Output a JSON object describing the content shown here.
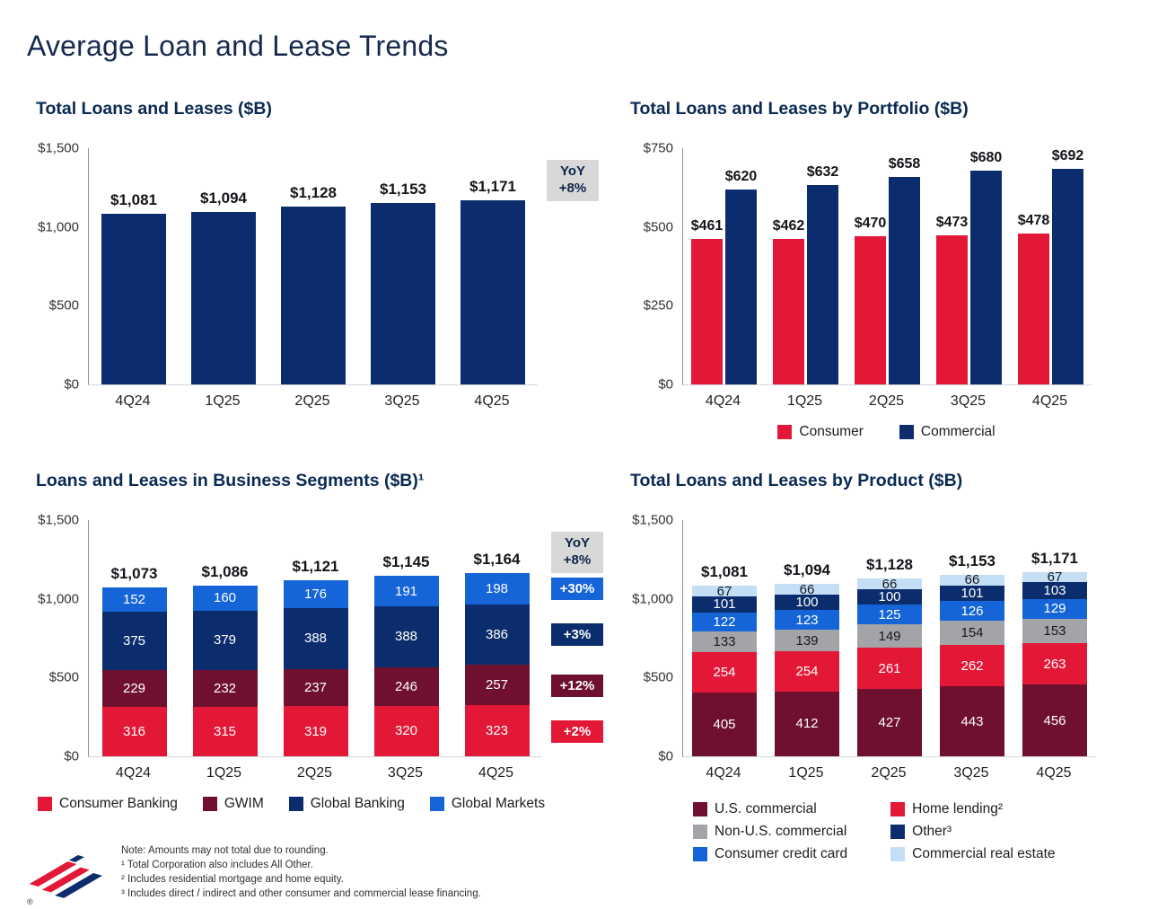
{
  "slide": {
    "title": "Average Loan and Lease Trends",
    "registered_mark": "®"
  },
  "colors": {
    "navy": "#0c2d6d",
    "red": "#e31837",
    "maroon": "#6e102e",
    "blue": "#1565d8",
    "pale_blue": "#c3def5",
    "gray": "#a2a4a7",
    "badge_gray": "#d8d8d8"
  },
  "chart_data": [
    {
      "id": "total",
      "type": "bar",
      "title": "Total Loans and Leases ($B)",
      "ylim": [
        0,
        1500
      ],
      "yticks": [
        "$1,500",
        "$1,000",
        "$500",
        "$0"
      ],
      "categories": [
        "4Q24",
        "1Q25",
        "2Q25",
        "3Q25",
        "4Q25"
      ],
      "values": [
        1081,
        1094,
        1128,
        1153,
        1171
      ],
      "labels": [
        "$1,081",
        "$1,094",
        "$1,128",
        "$1,153",
        "$1,171"
      ],
      "bar_color": "navy",
      "yoy_badge": [
        "YoY",
        "+8%"
      ]
    },
    {
      "id": "portfolio",
      "type": "grouped-bar",
      "title": "Total Loans and Leases by Portfolio ($B)",
      "ylim": [
        0,
        750
      ],
      "yticks": [
        "$750",
        "$500",
        "$250",
        "$0"
      ],
      "categories": [
        "4Q24",
        "1Q25",
        "2Q25",
        "3Q25",
        "4Q25"
      ],
      "series": [
        {
          "name": "Consumer",
          "color": "red",
          "values": [
            461,
            462,
            470,
            473,
            478
          ],
          "labels": [
            "$461",
            "$462",
            "$470",
            "$473",
            "$478"
          ]
        },
        {
          "name": "Commercial",
          "color": "navy",
          "values": [
            620,
            632,
            658,
            680,
            692
          ],
          "labels": [
            "$620",
            "$632",
            "$658",
            "$680",
            "$692"
          ]
        }
      ]
    },
    {
      "id": "segments",
      "type": "stacked-bar",
      "title": "Loans and Leases in Business Segments ($B)¹",
      "ylim": [
        0,
        1500
      ],
      "yticks": [
        "$1,500",
        "$1,000",
        "$500",
        "$0"
      ],
      "categories": [
        "4Q24",
        "1Q25",
        "2Q25",
        "3Q25",
        "4Q25"
      ],
      "totals": [
        "$1,073",
        "$1,086",
        "$1,121",
        "$1,145",
        "$1,164"
      ],
      "yoy_badge": [
        "YoY",
        "+8%"
      ],
      "series": [
        {
          "name": "Consumer Banking",
          "color": "red",
          "values": [
            316,
            315,
            319,
            320,
            323
          ],
          "yoy": "+2%"
        },
        {
          "name": "GWIM",
          "color": "maroon",
          "values": [
            229,
            232,
            237,
            246,
            257
          ],
          "yoy": "+12%"
        },
        {
          "name": "Global Banking",
          "color": "navy",
          "values": [
            375,
            379,
            388,
            388,
            386
          ],
          "yoy": "+3%"
        },
        {
          "name": "Global Markets",
          "color": "blue",
          "values": [
            152,
            160,
            176,
            191,
            198
          ],
          "yoy": "+30%"
        }
      ]
    },
    {
      "id": "product",
      "type": "stacked-bar",
      "title": "Total Loans and Leases by Product ($B)",
      "ylim": [
        0,
        1500
      ],
      "yticks": [
        "$1,500",
        "$1,000",
        "$500",
        "$0"
      ],
      "categories": [
        "4Q24",
        "1Q25",
        "2Q25",
        "3Q25",
        "4Q25"
      ],
      "totals": [
        "$1,081",
        "$1,094",
        "$1,128",
        "$1,153",
        "$1,171"
      ],
      "series": [
        {
          "name": "U.S. commercial",
          "color": "maroon",
          "values": [
            405,
            412,
            427,
            443,
            456
          ]
        },
        {
          "name": "Home lending²",
          "color": "red",
          "values": [
            254,
            254,
            261,
            262,
            263
          ]
        },
        {
          "name": "Non-U.S. commercial",
          "color": "gray",
          "values": [
            133,
            139,
            149,
            154,
            153
          ],
          "dark_text": true
        },
        {
          "name": "Consumer credit card",
          "color": "blue",
          "values": [
            122,
            123,
            125,
            126,
            129
          ]
        },
        {
          "name": "Other³",
          "color": "navy",
          "values": [
            101,
            100,
            100,
            101,
            103
          ]
        },
        {
          "name": "Commercial real estate",
          "color": "pale_blue",
          "values": [
            67,
            66,
            66,
            66,
            67
          ],
          "dark_text": true
        }
      ],
      "legend_columns": [
        [
          "U.S. commercial",
          "Non-U.S. commercial",
          "Consumer credit card"
        ],
        [
          "Home lending²",
          "Other³",
          "Commercial real estate"
        ]
      ]
    }
  ],
  "footnotes": [
    "Note: Amounts may not total due to rounding.",
    "¹ Total Corporation also includes All Other.",
    "² Includes residential mortgage and home equity.",
    "³ Includes direct / indirect and other consumer and commercial lease financing."
  ]
}
